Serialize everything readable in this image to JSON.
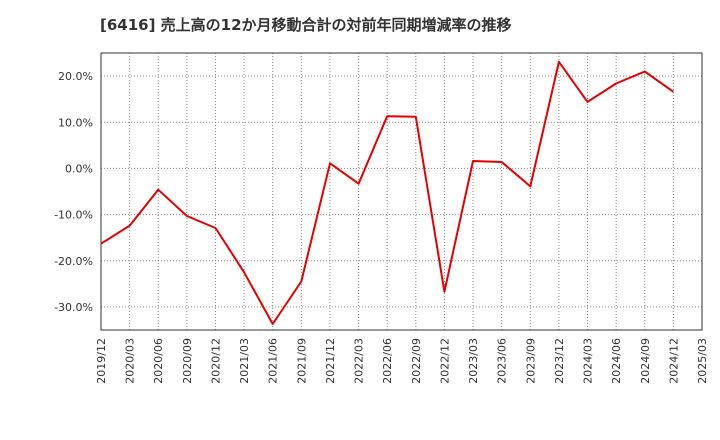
{
  "chart_data": {
    "type": "line",
    "title": "[6416]  売上高の12か月移動合計の対前年同期増減率の推移",
    "xlabel": "",
    "ylabel": "",
    "x": [
      "2019/12",
      "2020/03",
      "2020/06",
      "2020/09",
      "2020/12",
      "2021/03",
      "2021/06",
      "2021/09",
      "2021/12",
      "2022/03",
      "2022/06",
      "2022/09",
      "2022/12",
      "2023/03",
      "2023/06",
      "2023/09",
      "2023/12",
      "2024/03",
      "2024/06",
      "2024/09",
      "2024/12",
      "2025/03"
    ],
    "series": [
      {
        "values": [
          -16.3,
          -12.4,
          -4.6,
          -10.3,
          -12.9,
          -22.5,
          -33.7,
          -24.5,
          1.1,
          -3.3,
          11.3,
          11.2,
          -26.7,
          1.6,
          1.4,
          -3.9,
          23.1,
          14.4,
          18.4,
          21.0,
          16.6,
          null
        ],
        "color": "#e60000"
      }
    ],
    "ylim": [
      -35,
      25
    ],
    "yticks": [
      -30,
      -20,
      -10,
      0,
      10,
      20
    ],
    "ytick_labels": [
      "-30.0%",
      "-20.0%",
      "-10.0%",
      "0.0%",
      "10.0%",
      "20.0%"
    ],
    "grid": true
  }
}
